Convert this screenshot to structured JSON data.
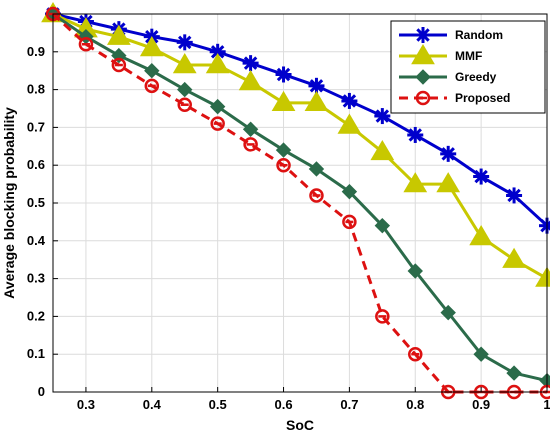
{
  "chart_data": {
    "type": "line",
    "xlabel": "SoC",
    "ylabel": "Average blocking probability",
    "xlim": [
      0.25,
      1.0
    ],
    "ylim": [
      0,
      1.0
    ],
    "xticks": [
      "0.3",
      "0.4",
      "0.5",
      "0.6",
      "0.7",
      "0.8",
      "0.9",
      "1"
    ],
    "yticks": [
      "0",
      "0.1",
      "0.2",
      "0.3",
      "0.4",
      "0.5",
      "0.6",
      "0.7",
      "0.8",
      "0.9"
    ],
    "grid": true,
    "legend_position": "top-right",
    "x": [
      0.25,
      0.3,
      0.35,
      0.4,
      0.45,
      0.5,
      0.55,
      0.6,
      0.65,
      0.7,
      0.75,
      0.8,
      0.85,
      0.9,
      0.95,
      1.0
    ],
    "series": [
      {
        "name": "Random",
        "color": "#0000cc",
        "marker": "asterisk",
        "line_style": "solid",
        "values": [
          1.0,
          0.98,
          0.96,
          0.94,
          0.925,
          0.9,
          0.87,
          0.84,
          0.81,
          0.77,
          0.73,
          0.68,
          0.63,
          0.57,
          0.52,
          0.44
        ]
      },
      {
        "name": "MMF",
        "color": "#c8c800",
        "marker": "triangle",
        "line_style": "solid",
        "values": [
          1.0,
          0.96,
          0.94,
          0.91,
          0.865,
          0.865,
          0.82,
          0.765,
          0.765,
          0.705,
          0.635,
          0.55,
          0.55,
          0.41,
          0.35,
          0.3
        ]
      },
      {
        "name": "Greedy",
        "color": "#2b6b4a",
        "marker": "diamond",
        "line_style": "solid",
        "values": [
          1.0,
          0.94,
          0.89,
          0.85,
          0.8,
          0.755,
          0.695,
          0.64,
          0.59,
          0.53,
          0.44,
          0.32,
          0.21,
          0.1,
          0.05,
          0.03
        ]
      },
      {
        "name": "Proposed",
        "color": "#dd1111",
        "marker": "circle",
        "line_style": "dashed",
        "values": [
          1.0,
          0.92,
          0.865,
          0.81,
          0.76,
          0.71,
          0.655,
          0.6,
          0.52,
          0.45,
          0.2,
          0.1,
          0.0,
          0.0,
          0.0,
          0.0
        ]
      }
    ]
  }
}
